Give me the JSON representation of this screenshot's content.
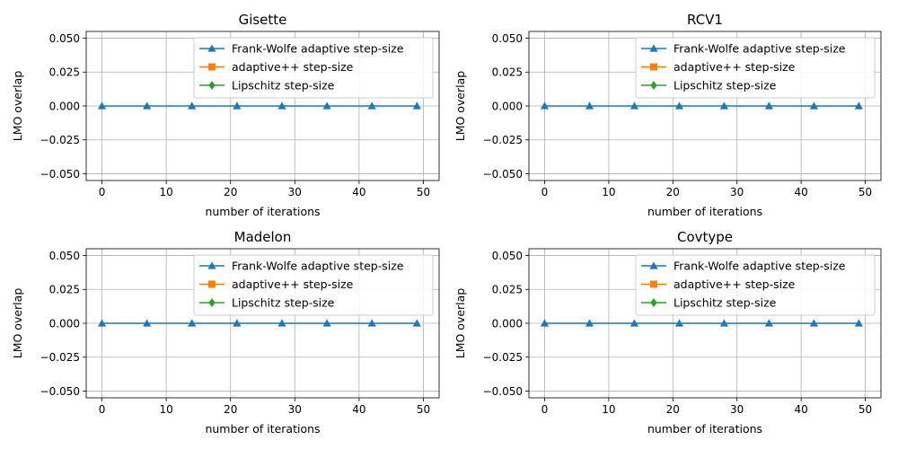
{
  "chart_data": [
    {
      "type": "line",
      "title": "Gisette",
      "xlabel": "number of iterations",
      "ylabel": "LMO overlap",
      "xlim": [
        -2.45,
        52.45
      ],
      "ylim": [
        -0.055,
        0.055
      ],
      "xticks": [
        0,
        10,
        20,
        30,
        40,
        50
      ],
      "yticks": [
        -0.05,
        -0.025,
        0.0,
        0.025,
        0.05
      ],
      "xtick_labels": [
        "0",
        "10",
        "20",
        "30",
        "40",
        "50"
      ],
      "ytick_labels": [
        "−0.050",
        "−0.025",
        "0.000",
        "0.025",
        "0.050"
      ],
      "grid": true,
      "legend_position": "top-right",
      "legend_labels": [
        "Frank-Wolfe adaptive step-size",
        "adaptive++ step-size",
        "Lipschitz step-size"
      ],
      "series": [
        {
          "name": "Frank-Wolfe adaptive step-size",
          "color": "#1f77b4",
          "marker": "triangle",
          "x": [
            0,
            7,
            14,
            21,
            28,
            35,
            42,
            49
          ],
          "y": [
            0,
            0,
            0,
            0,
            0,
            0,
            0,
            0
          ]
        },
        {
          "name": "adaptive++ step-size",
          "color": "#ff7f0e",
          "marker": "square",
          "x": [],
          "y": []
        },
        {
          "name": "Lipschitz step-size",
          "color": "#2ca02c",
          "marker": "diamond",
          "x": [],
          "y": []
        }
      ]
    },
    {
      "type": "line",
      "title": "RCV1",
      "xlabel": "number of iterations",
      "ylabel": "LMO overlap",
      "xlim": [
        -2.45,
        52.45
      ],
      "ylim": [
        -0.055,
        0.055
      ],
      "xticks": [
        0,
        10,
        20,
        30,
        40,
        50
      ],
      "yticks": [
        -0.05,
        -0.025,
        0.0,
        0.025,
        0.05
      ],
      "xtick_labels": [
        "0",
        "10",
        "20",
        "30",
        "40",
        "50"
      ],
      "ytick_labels": [
        "−0.050",
        "−0.025",
        "0.000",
        "0.025",
        "0.050"
      ],
      "grid": true,
      "legend_position": "top-right",
      "legend_labels": [
        "Frank-Wolfe adaptive step-size",
        "adaptive++ step-size",
        "Lipschitz step-size"
      ],
      "series": [
        {
          "name": "Frank-Wolfe adaptive step-size",
          "color": "#1f77b4",
          "marker": "triangle",
          "x": [
            0,
            7,
            14,
            21,
            28,
            35,
            42,
            49
          ],
          "y": [
            0,
            0,
            0,
            0,
            0,
            0,
            0,
            0
          ]
        },
        {
          "name": "adaptive++ step-size",
          "color": "#ff7f0e",
          "marker": "square",
          "x": [],
          "y": []
        },
        {
          "name": "Lipschitz step-size",
          "color": "#2ca02c",
          "marker": "diamond",
          "x": [],
          "y": []
        }
      ]
    },
    {
      "type": "line",
      "title": "Madelon",
      "xlabel": "number of iterations",
      "ylabel": "LMO overlap",
      "xlim": [
        -2.45,
        52.45
      ],
      "ylim": [
        -0.055,
        0.055
      ],
      "xticks": [
        0,
        10,
        20,
        30,
        40,
        50
      ],
      "yticks": [
        -0.05,
        -0.025,
        0.0,
        0.025,
        0.05
      ],
      "xtick_labels": [
        "0",
        "10",
        "20",
        "30",
        "40",
        "50"
      ],
      "ytick_labels": [
        "−0.050",
        "−0.025",
        "0.000",
        "0.025",
        "0.050"
      ],
      "grid": true,
      "legend_position": "top-right",
      "legend_labels": [
        "Frank-Wolfe adaptive step-size",
        "adaptive++ step-size",
        "Lipschitz step-size"
      ],
      "series": [
        {
          "name": "Frank-Wolfe adaptive step-size",
          "color": "#1f77b4",
          "marker": "triangle",
          "x": [
            0,
            7,
            14,
            21,
            28,
            35,
            42,
            49
          ],
          "y": [
            0,
            0,
            0,
            0,
            0,
            0,
            0,
            0
          ]
        },
        {
          "name": "adaptive++ step-size",
          "color": "#ff7f0e",
          "marker": "square",
          "x": [],
          "y": []
        },
        {
          "name": "Lipschitz step-size",
          "color": "#2ca02c",
          "marker": "diamond",
          "x": [],
          "y": []
        }
      ]
    },
    {
      "type": "line",
      "title": "Covtype",
      "xlabel": "number of iterations",
      "ylabel": "LMO overlap",
      "xlim": [
        -2.45,
        52.45
      ],
      "ylim": [
        -0.055,
        0.055
      ],
      "xticks": [
        0,
        10,
        20,
        30,
        40,
        50
      ],
      "yticks": [
        -0.05,
        -0.025,
        0.0,
        0.025,
        0.05
      ],
      "xtick_labels": [
        "0",
        "10",
        "20",
        "30",
        "40",
        "50"
      ],
      "ytick_labels": [
        "−0.050",
        "−0.025",
        "0.000",
        "0.025",
        "0.050"
      ],
      "grid": true,
      "legend_position": "top-right",
      "legend_labels": [
        "Frank-Wolfe adaptive step-size",
        "adaptive++ step-size",
        "Lipschitz step-size"
      ],
      "series": [
        {
          "name": "Frank-Wolfe adaptive step-size",
          "color": "#1f77b4",
          "marker": "triangle",
          "x": [
            0,
            7,
            14,
            21,
            28,
            35,
            42,
            49
          ],
          "y": [
            0,
            0,
            0,
            0,
            0,
            0,
            0,
            0
          ]
        },
        {
          "name": "adaptive++ step-size",
          "color": "#ff7f0e",
          "marker": "square",
          "x": [],
          "y": []
        },
        {
          "name": "Lipschitz step-size",
          "color": "#2ca02c",
          "marker": "diamond",
          "x": [],
          "y": []
        }
      ]
    }
  ]
}
